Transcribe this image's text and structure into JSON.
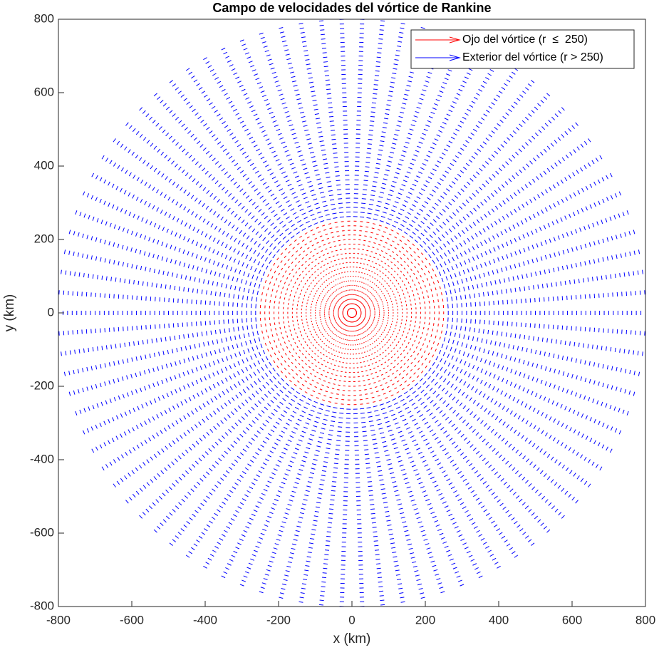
{
  "chart_data": {
    "type": "quiver",
    "title": "Campo de velocidades del vórtice de Rankine",
    "x_label": "x (km)",
    "y_label": "y (km)",
    "xlim": [
      -800,
      800
    ],
    "ylim": [
      -800,
      800
    ],
    "xticks": [
      -800,
      -600,
      -400,
      -200,
      0,
      200,
      400,
      600,
      800
    ],
    "yticks": [
      -800,
      -600,
      -400,
      -200,
      0,
      200,
      400,
      600,
      800
    ],
    "legend": "upper right",
    "angles": [
      0,
      4,
      8,
      12,
      16,
      20,
      24,
      28,
      32,
      36,
      40,
      44,
      48,
      52,
      56,
      60,
      64,
      68,
      72,
      76,
      80,
      84,
      88,
      92,
      96,
      100,
      104,
      108,
      112,
      116,
      120,
      124,
      128,
      132,
      136,
      140,
      144,
      148,
      152,
      156,
      160,
      164,
      168,
      172,
      176,
      180,
      184,
      188,
      192,
      196,
      200,
      204,
      208,
      212,
      216,
      220,
      224,
      228,
      232,
      236,
      240,
      244,
      248,
      252,
      256,
      260,
      264,
      268,
      272,
      276,
      280,
      284,
      288,
      292,
      296,
      300,
      304,
      308,
      312,
      316,
      320,
      324,
      328,
      332,
      336,
      340,
      344,
      348,
      352,
      356
    ],
    "series": [
      {
        "name": "Ojo del vórtice (r  ≤  250)",
        "color": "#ff0000",
        "r": [
          12.5,
          25,
          37.5,
          50,
          62.5,
          75,
          87.5,
          100,
          112.5,
          125,
          137.5,
          150,
          162.5,
          175,
          187.5,
          200,
          212.5,
          225,
          237.5,
          250
        ]
      },
      {
        "name": "Exterior del vórtice (r > 250)",
        "color": "#0000ff",
        "r": [
          262.5,
          275,
          287.5,
          300,
          312.5,
          325,
          337.5,
          350,
          362.5,
          375,
          387.5,
          400,
          412.5,
          425,
          437.5,
          450,
          462.5,
          475,
          487.5,
          500,
          512.5,
          525,
          537.5,
          550,
          562.5,
          575,
          587.5,
          600,
          612.5,
          625,
          637.5,
          650,
          662.5,
          675,
          687.5,
          700,
          712.5,
          725,
          737.5,
          750,
          762.5,
          775,
          787.5,
          800
        ]
      }
    ]
  }
}
